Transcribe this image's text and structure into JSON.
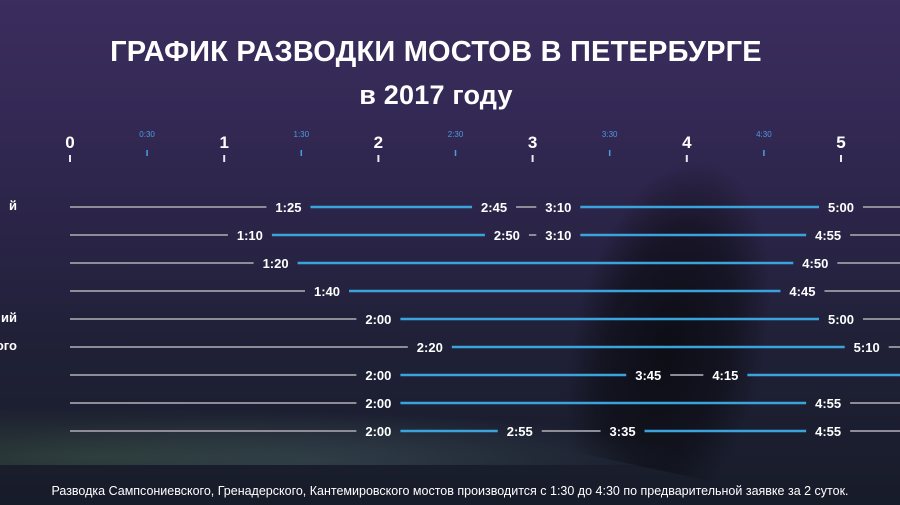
{
  "title": "ГРАФИК РАЗВОДКИ МОСТОВ В ПЕТЕРБУРГЕ",
  "subtitle": "в 2017 году",
  "footnote": "Разводка Сампсониевского, Гренадерского, Кантемировского мостов производится с 1:30 до 4:30 по предварительной заявке за 2 суток.",
  "colors": {
    "open": "#3aa3dc",
    "closed": "#8f8c99",
    "text": "#ffffff",
    "half_tick": "#4d9be0"
  },
  "chart_data": {
    "type": "gantt",
    "axis": {
      "major_ticks": [
        "0",
        "1",
        "2",
        "3",
        "4",
        "5"
      ],
      "minor_ticks": [
        "0:30",
        "1:30",
        "2:30",
        "3:30",
        "4:30"
      ],
      "range_hours": [
        0,
        5.3
      ]
    },
    "rows": [
      {
        "label": "й",
        "intervals": [
          {
            "start": "1:25",
            "end": "2:45"
          },
          {
            "start": "3:10",
            "end": "5:00"
          }
        ]
      },
      {
        "label": "",
        "intervals": [
          {
            "start": "1:10",
            "end": "2:50"
          },
          {
            "start": "3:10",
            "end": "4:55"
          }
        ]
      },
      {
        "label": "",
        "intervals": [
          {
            "start": "1:20",
            "end": "4:50"
          }
        ]
      },
      {
        "label": "",
        "intervals": [
          {
            "start": "1:40",
            "end": "4:45"
          }
        ]
      },
      {
        "label": "ий",
        "intervals": [
          {
            "start": "2:00",
            "end": "5:00"
          }
        ]
      },
      {
        "label": "кого",
        "intervals": [
          {
            "start": "2:20",
            "end": "5:10"
          }
        ]
      },
      {
        "label": "",
        "intervals": [
          {
            "start": "2:00",
            "end": "3:45"
          },
          {
            "start": "4:15",
            "end": ""
          }
        ]
      },
      {
        "label": "",
        "intervals": [
          {
            "start": "2:00",
            "end": "4:55"
          }
        ]
      },
      {
        "label": "",
        "intervals": [
          {
            "start": "2:00",
            "end": "2:55"
          },
          {
            "start": "3:35",
            "end": "4:55"
          }
        ]
      }
    ]
  }
}
